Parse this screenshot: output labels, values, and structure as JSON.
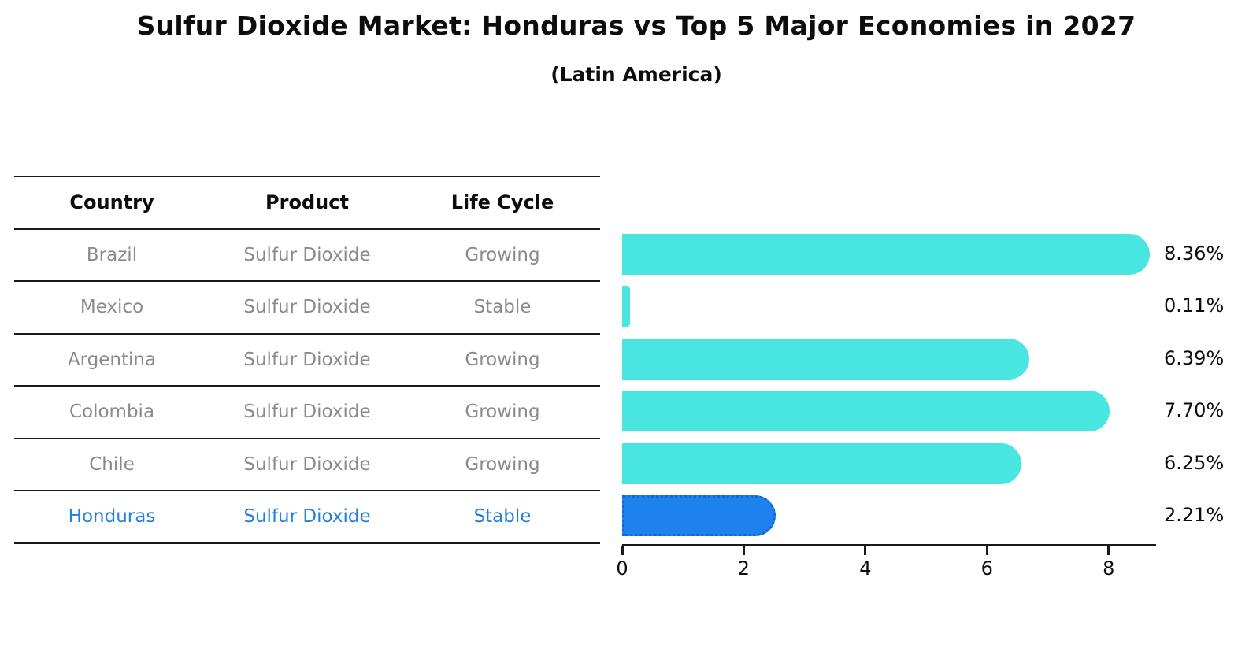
{
  "title": "Sulfur Dioxide Market: Honduras vs Top 5 Major Economies in 2027",
  "subtitle": "(Latin America)",
  "table": {
    "headers": [
      "Country",
      "Product",
      "Life Cycle"
    ],
    "rows": [
      {
        "country": "Brazil",
        "product": "Sulfur Dioxide",
        "life_cycle": "Growing",
        "highlight": false
      },
      {
        "country": "Mexico",
        "product": "Sulfur Dioxide",
        "life_cycle": "Stable",
        "highlight": false
      },
      {
        "country": "Argentina",
        "product": "Sulfur Dioxide",
        "life_cycle": "Growing",
        "highlight": false
      },
      {
        "country": "Colombia",
        "product": "Sulfur Dioxide",
        "life_cycle": "Growing",
        "highlight": false
      },
      {
        "country": "Chile",
        "product": "Sulfur Dioxide",
        "life_cycle": "Growing",
        "highlight": false
      },
      {
        "country": "Honduras",
        "product": "Sulfur Dioxide",
        "life_cycle": "Stable",
        "highlight": true
      }
    ]
  },
  "chart_data": {
    "type": "bar",
    "orientation": "horizontal",
    "title": "Sulfur Dioxide Market: Honduras vs Top 5 Major Economies in 2027",
    "subtitle": "(Latin America)",
    "categories": [
      "Brazil",
      "Mexico",
      "Argentina",
      "Colombia",
      "Chile",
      "Honduras"
    ],
    "values": [
      8.36,
      0.11,
      6.39,
      7.7,
      6.25,
      2.21
    ],
    "value_labels": [
      "8.36%",
      "0.11%",
      "6.39%",
      "7.70%",
      "6.25%",
      "2.21%"
    ],
    "x_ticks": [
      0,
      2,
      4,
      6,
      8
    ],
    "x_tick_labels": [
      "0",
      "2",
      "4",
      "6",
      "8"
    ],
    "xlim": [
      0,
      8.78
    ],
    "grid": false,
    "legend": null,
    "highlight_index": 5,
    "bar_color": "#48E5E1",
    "highlight_bar_color": "#1E82EE"
  },
  "colors": {
    "background": "#FFFFFF",
    "table_line": "#1A1A1A",
    "header_text": "#0D0D0D",
    "row_text": "#8A8A8A",
    "highlight_text": "#2380DC",
    "axis": "#1A1A1A",
    "value_label_text": "#0D0D0D"
  }
}
